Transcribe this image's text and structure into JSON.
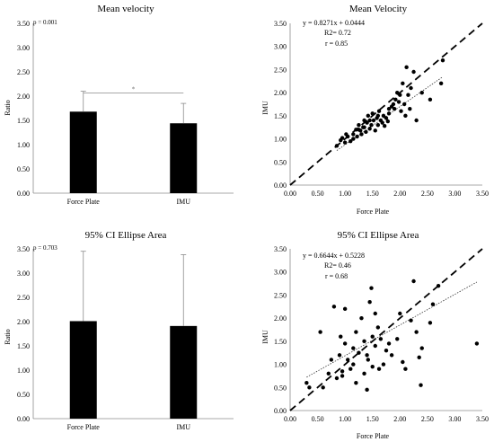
{
  "chart_data": [
    {
      "type": "bar",
      "title": "Mean velocity",
      "annotation": "p = 0.001",
      "significance_marker": "*",
      "categories": [
        "Force Plate",
        "IMU"
      ],
      "values": [
        1.68,
        1.44
      ],
      "error": [
        0.42,
        0.41
      ],
      "xlabel": "",
      "ylabel": "Ratio",
      "ylim": [
        0,
        3.5
      ],
      "yticks": [
        "0.00",
        "0.50",
        "1.00",
        "1.50",
        "2.00",
        "2.50",
        "3.00",
        "3.50"
      ],
      "bar_color": "#000000"
    },
    {
      "type": "scatter",
      "title": "Mean Velocity",
      "equation": "y = 0.8271x + 0.0444",
      "r2": "R2= 0.72",
      "r": "r = 0.85",
      "xlabel": "Force Plate",
      "ylabel": "IMU",
      "xlim": [
        0,
        3.5
      ],
      "ylim": [
        0,
        3.5
      ],
      "ticks": [
        "0.00",
        "0.50",
        "1.00",
        "1.50",
        "2.00",
        "2.50",
        "3.00",
        "3.50"
      ],
      "identity_line": true,
      "fit": {
        "slope": 0.8271,
        "intercept": 0.0444
      },
      "points": [
        [
          0.85,
          0.85
        ],
        [
          0.92,
          0.97
        ],
        [
          0.95,
          1.02
        ],
        [
          1.0,
          0.92
        ],
        [
          1.02,
          1.1
        ],
        [
          1.05,
          1.05
        ],
        [
          1.1,
          0.95
        ],
        [
          1.15,
          1.1
        ],
        [
          1.2,
          1.2
        ],
        [
          1.22,
          1.05
        ],
        [
          1.25,
          1.3
        ],
        [
          1.28,
          1.18
        ],
        [
          1.3,
          1.1
        ],
        [
          1.33,
          1.25
        ],
        [
          1.35,
          1.4
        ],
        [
          1.38,
          1.15
        ],
        [
          1.4,
          1.35
        ],
        [
          1.42,
          1.5
        ],
        [
          1.45,
          1.22
        ],
        [
          1.48,
          1.3
        ],
        [
          1.5,
          1.55
        ],
        [
          1.52,
          1.4
        ],
        [
          1.55,
          1.18
        ],
        [
          1.58,
          1.45
        ],
        [
          1.6,
          1.3
        ],
        [
          1.62,
          1.6
        ],
        [
          1.65,
          1.4
        ],
        [
          1.68,
          1.35
        ],
        [
          1.7,
          1.5
        ],
        [
          1.72,
          1.28
        ],
        [
          1.75,
          1.45
        ],
        [
          1.78,
          1.38
        ],
        [
          1.8,
          1.55
        ],
        [
          1.85,
          1.7
        ],
        [
          1.88,
          1.75
        ],
        [
          1.9,
          1.65
        ],
        [
          1.92,
          1.85
        ],
        [
          1.95,
          2.0
        ],
        [
          1.98,
          1.8
        ],
        [
          2.0,
          1.95
        ],
        [
          2.02,
          1.6
        ],
        [
          2.05,
          2.2
        ],
        [
          2.08,
          1.75
        ],
        [
          2.1,
          1.5
        ],
        [
          2.12,
          2.55
        ],
        [
          2.15,
          1.95
        ],
        [
          2.18,
          1.65
        ],
        [
          2.2,
          2.1
        ],
        [
          2.25,
          2.45
        ],
        [
          2.3,
          1.4
        ],
        [
          2.4,
          2.0
        ],
        [
          2.55,
          1.85
        ],
        [
          2.75,
          2.2
        ],
        [
          2.78,
          2.7
        ],
        [
          1.25,
          1.2
        ],
        [
          1.45,
          1.4
        ],
        [
          1.6,
          1.5
        ],
        [
          1.35,
          1.25
        ],
        [
          1.15,
          1.0
        ],
        [
          1.8,
          1.65
        ]
      ]
    },
    {
      "type": "bar",
      "title": "95% CI Ellipse Area",
      "annotation": "p = 0.703",
      "categories": [
        "Force Plate",
        "IMU"
      ],
      "values": [
        2.01,
        1.91
      ],
      "error": [
        1.44,
        1.47
      ],
      "xlabel": "",
      "ylabel": "Ratio",
      "ylim": [
        0,
        3.5
      ],
      "yticks": [
        "0.00",
        "0.50",
        "1.00",
        "1.50",
        "2.00",
        "2.50",
        "3.00",
        "3.50"
      ],
      "bar_color": "#000000"
    },
    {
      "type": "scatter",
      "title": "95% CI Ellipse Area",
      "equation": "y = 0.6644x + 0.5228",
      "r2": "R2= 0.46",
      "r": "r = 0.68",
      "xlabel": "Force Plate",
      "ylabel": "IMU",
      "xlim": [
        0,
        3.5
      ],
      "ylim": [
        0,
        3.5
      ],
      "ticks": [
        "0.00",
        "0.50",
        "1.00",
        "1.50",
        "2.00",
        "2.50",
        "3.00",
        "3.50"
      ],
      "identity_line": true,
      "fit": {
        "slope": 0.6644,
        "intercept": 0.5228
      },
      "points": [
        [
          0.3,
          0.6
        ],
        [
          0.35,
          0.5
        ],
        [
          0.55,
          1.7
        ],
        [
          0.6,
          0.5
        ],
        [
          0.7,
          0.8
        ],
        [
          0.75,
          1.1
        ],
        [
          0.8,
          2.25
        ],
        [
          0.85,
          0.7
        ],
        [
          0.9,
          1.2
        ],
        [
          0.92,
          1.6
        ],
        [
          0.95,
          0.85
        ],
        [
          1.0,
          1.45
        ],
        [
          1.0,
          2.2
        ],
        [
          1.05,
          1.1
        ],
        [
          1.1,
          0.9
        ],
        [
          1.15,
          1.35
        ],
        [
          1.2,
          0.6
        ],
        [
          1.2,
          1.7
        ],
        [
          1.25,
          1.25
        ],
        [
          1.3,
          2.0
        ],
        [
          1.35,
          0.8
        ],
        [
          1.35,
          1.5
        ],
        [
          1.4,
          0.45
        ],
        [
          1.4,
          1.2
        ],
        [
          1.45,
          2.35
        ],
        [
          1.48,
          2.65
        ],
        [
          1.5,
          1.6
        ],
        [
          1.5,
          0.95
        ],
        [
          1.55,
          1.4
        ],
        [
          1.55,
          2.1
        ],
        [
          1.6,
          1.8
        ],
        [
          1.62,
          0.9
        ],
        [
          1.65,
          1.55
        ],
        [
          1.7,
          1.0
        ],
        [
          1.75,
          1.3
        ],
        [
          1.8,
          1.45
        ],
        [
          1.85,
          1.2
        ],
        [
          1.95,
          1.55
        ],
        [
          2.0,
          2.1
        ],
        [
          2.05,
          1.05
        ],
        [
          2.1,
          0.9
        ],
        [
          2.2,
          1.95
        ],
        [
          2.25,
          2.8
        ],
        [
          2.3,
          1.7
        ],
        [
          2.35,
          1.15
        ],
        [
          2.38,
          0.55
        ],
        [
          2.4,
          1.35
        ],
        [
          2.55,
          1.9
        ],
        [
          2.6,
          2.3
        ],
        [
          2.7,
          2.7
        ],
        [
          3.4,
          1.45
        ],
        [
          0.95,
          0.75
        ],
        [
          1.15,
          1.0
        ],
        [
          1.42,
          1.1
        ]
      ]
    }
  ]
}
